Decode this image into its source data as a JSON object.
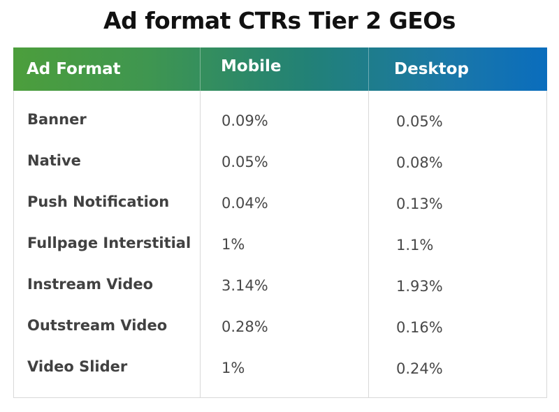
{
  "chart_data": {
    "type": "table",
    "title": "Ad format CTRs Tier 2 GEOs",
    "columns": [
      "Ad Format",
      "Mobile",
      "Desktop"
    ],
    "rows": [
      {
        "format": "Banner",
        "mobile": "0.09%",
        "desktop": "0.05%"
      },
      {
        "format": "Native",
        "mobile": "0.05%",
        "desktop": "0.08%"
      },
      {
        "format": "Push Notification",
        "mobile": "0.04%",
        "desktop": "0.13%"
      },
      {
        "format": "Fullpage Interstitial",
        "mobile": "1%",
        "desktop": "1.1%"
      },
      {
        "format": "Instream Video",
        "mobile": "3.14%",
        "desktop": "1.93%"
      },
      {
        "format": "Outstream Video",
        "mobile": "0.28%",
        "desktop": "0.16%"
      },
      {
        "format": "Video Slider",
        "mobile": "1%",
        "desktop": "0.24%"
      }
    ]
  },
  "colors": {
    "header_start": "#4c9e3c",
    "header_end": "#0a6dbd",
    "border": "#d9d9d9",
    "title": "#111111",
    "text": "#414141"
  }
}
